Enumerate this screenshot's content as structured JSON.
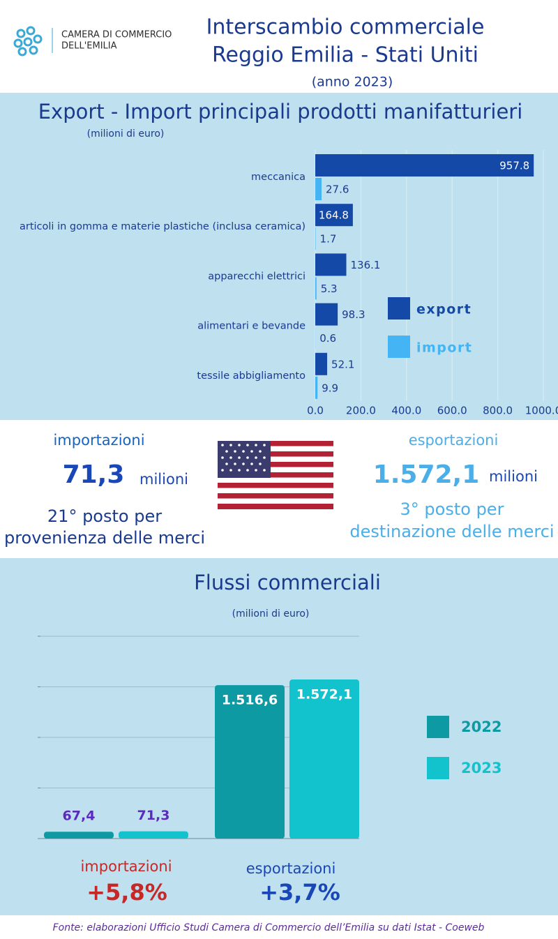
{
  "header": {
    "org": [
      "CAMERA DI COMMERCIO",
      "DELL'EMILIA"
    ],
    "title": [
      "Interscambio commerciale",
      "Reggio Emilia - Stati Uniti"
    ],
    "subtitle": "(anno 2023)"
  },
  "chart_data": [
    {
      "type": "bar",
      "orientation": "horizontal",
      "title": "Export - Import principali prodotti manifatturieri",
      "subtitle": "(milioni di euro)",
      "categories": [
        "meccanica",
        "articoli in gomma e materie plastiche (inclusa ceramica)",
        "apparecchi elettrici",
        "alimentari e bevande",
        "tessile abbigliamento"
      ],
      "series": [
        {
          "name": "export",
          "color": "#1449a8",
          "values": [
            957.8,
            164.8,
            136.1,
            98.3,
            52.1
          ]
        },
        {
          "name": "import",
          "color": "#44b4f4",
          "values": [
            27.6,
            1.7,
            5.3,
            0.6,
            9.9
          ]
        }
      ],
      "xlim": [
        0,
        1000
      ],
      "xticks": [
        {
          "value": 0,
          "label": "0.0"
        },
        {
          "value": 200,
          "label": "200.0"
        },
        {
          "value": 400,
          "label": "400.0"
        },
        {
          "value": 600,
          "label": "600.0"
        },
        {
          "value": 800,
          "label": "800.0"
        },
        {
          "value": 1000,
          "label": "1000.0"
        }
      ],
      "grid": true,
      "legend": "right"
    },
    {
      "type": "bar",
      "orientation": "vertical",
      "title": "Flussi commerciali",
      "subtitle": "(milioni di euro)",
      "categories": [
        "importazioni",
        "esportazioni"
      ],
      "category_colors": [
        "#c62828",
        "#1a47b8"
      ],
      "annotations": [
        "+5,8%",
        "+3,7%"
      ],
      "series": [
        {
          "name": "2022",
          "color": "#0e9aa3",
          "values": [
            67.4,
            1516.6
          ],
          "value_labels": [
            "67,4",
            "1.516,6"
          ]
        },
        {
          "name": "2023",
          "color": "#12c3cd",
          "values": [
            71.3,
            1572.1
          ],
          "value_labels": [
            "71,3",
            "1.572,1"
          ]
        }
      ],
      "ylim": [
        0,
        2000
      ],
      "yticks": [
        0,
        500,
        1000,
        1500,
        2000
      ],
      "grid": true,
      "legend": "right"
    }
  ],
  "summary": {
    "imports": {
      "label": "importazioni",
      "value": "71,3",
      "unit": "milioni",
      "rank": [
        "21° posto per",
        "provenienza delle merci"
      ]
    },
    "exports": {
      "label": "esportazioni",
      "value": "1.572,1",
      "unit": "milioni",
      "rank": [
        "3° posto per",
        "destinazione delle merci"
      ]
    }
  },
  "source": "Fonte: elaborazioni Ufficio Studi Camera di Commercio dell’Emilia su dati  Istat - Coeweb"
}
